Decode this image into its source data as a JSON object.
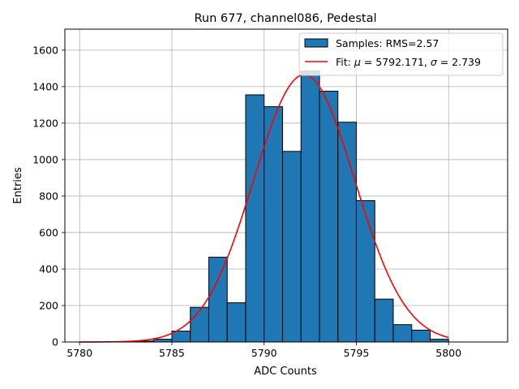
{
  "chart_data": {
    "type": "bar",
    "title": "Run 677, channel086, Pedestal",
    "xlabel": "ADC Counts",
    "ylabel": "Entries",
    "xlim": [
      5779.2,
      5803.2
    ],
    "ylim": [
      0,
      1715
    ],
    "grid": true,
    "legend_position": "top-right",
    "bar_color": "#1f77b4",
    "bar_edge_color": "#000000",
    "fit_color": "#ff0000",
    "x_ticks": [
      5780,
      5785,
      5790,
      5795,
      5800
    ],
    "y_ticks": [
      0,
      200,
      400,
      600,
      800,
      1000,
      1200,
      1400,
      1600
    ],
    "bins": [
      {
        "x0": 5782,
        "x1": 5783,
        "count": 2
      },
      {
        "x0": 5783,
        "x1": 5784,
        "count": 5
      },
      {
        "x0": 5784,
        "x1": 5785,
        "count": 15
      },
      {
        "x0": 5785,
        "x1": 5786,
        "count": 60
      },
      {
        "x0": 5786,
        "x1": 5787,
        "count": 190
      },
      {
        "x0": 5787,
        "x1": 5788,
        "count": 465
      },
      {
        "x0": 5788,
        "x1": 5789,
        "count": 215
      },
      {
        "x0": 5789,
        "x1": 5790,
        "count": 1355
      },
      {
        "x0": 5790,
        "x1": 5791,
        "count": 1290
      },
      {
        "x0": 5791,
        "x1": 5792,
        "count": 1045
      },
      {
        "x0": 5792,
        "x1": 5793,
        "count": 1485
      },
      {
        "x0": 5793,
        "x1": 5794,
        "count": 1375
      },
      {
        "x0": 5794,
        "x1": 5795,
        "count": 1205
      },
      {
        "x0": 5795,
        "x1": 5796,
        "count": 775
      },
      {
        "x0": 5796,
        "x1": 5797,
        "count": 235
      },
      {
        "x0": 5797,
        "x1": 5798,
        "count": 95
      },
      {
        "x0": 5798,
        "x1": 5799,
        "count": 65
      },
      {
        "x0": 5799,
        "x1": 5800,
        "count": 15
      }
    ],
    "fit": {
      "mu": 5792.171,
      "sigma": 2.739,
      "amplitude": 1465,
      "x_range": [
        5780,
        5800
      ]
    },
    "legend": {
      "samples_label": "Samples: RMS=2.57",
      "fit_prefix": "Fit: ",
      "fit_mu_symbol": "μ",
      "fit_mu_value": " = 5792.171, ",
      "fit_sigma_symbol": "σ",
      "fit_sigma_value": " = 2.739"
    }
  }
}
